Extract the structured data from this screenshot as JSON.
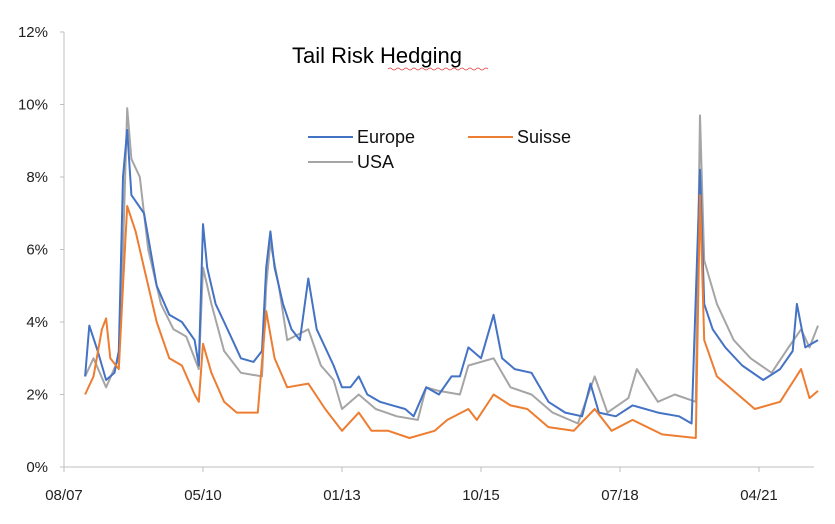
{
  "chart_data": {
    "type": "line",
    "title": "Tail Risk Hedging",
    "xlabel": "",
    "ylabel": "",
    "x_ticks": [
      "08/07",
      "05/10",
      "01/13",
      "10/15",
      "07/18",
      "04/21"
    ],
    "y_ticks": [
      "0%",
      "2%",
      "4%",
      "6%",
      "8%",
      "10%",
      "12%"
    ],
    "ylim": [
      0,
      12
    ],
    "y_unit": "%",
    "grid": false,
    "legend_position": "top-center",
    "series": [
      {
        "name": "Europe",
        "color": "#4472C4",
        "points": [
          [
            "2008-01",
            2.5
          ],
          [
            "2008-02",
            3.9
          ],
          [
            "2008-04",
            3.2
          ],
          [
            "2008-06",
            2.4
          ],
          [
            "2008-08",
            2.6
          ],
          [
            "2008-09",
            3.2
          ],
          [
            "2008-10",
            8.0
          ],
          [
            "2008-11",
            9.3
          ],
          [
            "2008-12",
            7.5
          ],
          [
            "2009-03",
            7.0
          ],
          [
            "2009-06",
            5.0
          ],
          [
            "2009-09",
            4.2
          ],
          [
            "2009-12",
            4.0
          ],
          [
            "2010-03",
            3.5
          ],
          [
            "2010-04",
            2.8
          ],
          [
            "2010-05",
            6.7
          ],
          [
            "2010-06",
            5.5
          ],
          [
            "2010-08",
            4.5
          ],
          [
            "2010-10",
            4.0
          ],
          [
            "2010-12",
            3.5
          ],
          [
            "2011-02",
            3.0
          ],
          [
            "2011-05",
            2.9
          ],
          [
            "2011-07",
            3.2
          ],
          [
            "2011-08",
            5.5
          ],
          [
            "2011-09",
            6.5
          ],
          [
            "2011-10",
            5.5
          ],
          [
            "2011-12",
            4.5
          ],
          [
            "2012-02",
            3.8
          ],
          [
            "2012-04",
            3.5
          ],
          [
            "2012-06",
            5.2
          ],
          [
            "2012-08",
            3.8
          ],
          [
            "2012-10",
            3.3
          ],
          [
            "2012-12",
            2.8
          ],
          [
            "2013-02",
            2.2
          ],
          [
            "2013-04",
            2.2
          ],
          [
            "2013-06",
            2.5
          ],
          [
            "2013-08",
            2.0
          ],
          [
            "2013-11",
            1.8
          ],
          [
            "2014-02",
            1.7
          ],
          [
            "2014-05",
            1.6
          ],
          [
            "2014-07",
            1.4
          ],
          [
            "2014-10",
            2.2
          ],
          [
            "2015-01",
            2.0
          ],
          [
            "2015-04",
            2.5
          ],
          [
            "2015-06",
            2.5
          ],
          [
            "2015-08",
            3.3
          ],
          [
            "2015-11",
            3.0
          ],
          [
            "2016-02",
            4.2
          ],
          [
            "2016-04",
            3.0
          ],
          [
            "2016-07",
            2.7
          ],
          [
            "2016-11",
            2.6
          ],
          [
            "2017-03",
            1.8
          ],
          [
            "2017-07",
            1.5
          ],
          [
            "2017-11",
            1.4
          ],
          [
            "2018-01",
            2.3
          ],
          [
            "2018-03",
            1.5
          ],
          [
            "2018-07",
            1.4
          ],
          [
            "2018-11",
            1.7
          ],
          [
            "2019-05",
            1.5
          ],
          [
            "2019-10",
            1.4
          ],
          [
            "2020-01",
            1.2
          ],
          [
            "2020-03",
            8.2
          ],
          [
            "2020-04",
            4.5
          ],
          [
            "2020-06",
            3.8
          ],
          [
            "2020-09",
            3.3
          ],
          [
            "2021-01",
            2.8
          ],
          [
            "2021-06",
            2.4
          ],
          [
            "2021-10",
            2.7
          ],
          [
            "2022-01",
            3.2
          ],
          [
            "2022-02",
            4.5
          ],
          [
            "2022-04",
            3.3
          ],
          [
            "2022-07",
            3.5
          ]
        ]
      },
      {
        "name": "Suisse",
        "color": "#ED7D31",
        "points": [
          [
            "2008-01",
            2.0
          ],
          [
            "2008-03",
            2.5
          ],
          [
            "2008-05",
            3.8
          ],
          [
            "2008-06",
            4.1
          ],
          [
            "2008-07",
            3.0
          ],
          [
            "2008-09",
            2.7
          ],
          [
            "2008-10",
            5.0
          ],
          [
            "2008-11",
            7.2
          ],
          [
            "2009-01",
            6.5
          ],
          [
            "2009-03",
            5.5
          ],
          [
            "2009-06",
            4.0
          ],
          [
            "2009-09",
            3.0
          ],
          [
            "2009-12",
            2.8
          ],
          [
            "2010-03",
            2.0
          ],
          [
            "2010-04",
            1.8
          ],
          [
            "2010-05",
            3.4
          ],
          [
            "2010-07",
            2.6
          ],
          [
            "2010-10",
            1.8
          ],
          [
            "2011-01",
            1.5
          ],
          [
            "2011-06",
            1.5
          ],
          [
            "2011-08",
            4.3
          ],
          [
            "2011-10",
            3.0
          ],
          [
            "2012-01",
            2.2
          ],
          [
            "2012-06",
            2.3
          ],
          [
            "2012-10",
            1.6
          ],
          [
            "2013-02",
            1.0
          ],
          [
            "2013-06",
            1.5
          ],
          [
            "2013-09",
            1.0
          ],
          [
            "2014-01",
            1.0
          ],
          [
            "2014-06",
            0.8
          ],
          [
            "2014-12",
            1.0
          ],
          [
            "2015-03",
            1.3
          ],
          [
            "2015-08",
            1.6
          ],
          [
            "2015-10",
            1.3
          ],
          [
            "2016-02",
            2.0
          ],
          [
            "2016-06",
            1.7
          ],
          [
            "2016-10",
            1.6
          ],
          [
            "2017-03",
            1.1
          ],
          [
            "2017-09",
            1.0
          ],
          [
            "2018-02",
            1.6
          ],
          [
            "2018-06",
            1.0
          ],
          [
            "2018-11",
            1.3
          ],
          [
            "2019-06",
            0.9
          ],
          [
            "2020-02",
            0.8
          ],
          [
            "2020-03",
            7.5
          ],
          [
            "2020-04",
            3.5
          ],
          [
            "2020-07",
            2.5
          ],
          [
            "2020-12",
            2.0
          ],
          [
            "2021-04",
            1.6
          ],
          [
            "2021-10",
            1.8
          ],
          [
            "2022-03",
            2.7
          ],
          [
            "2022-05",
            1.9
          ],
          [
            "2022-07",
            2.1
          ]
        ]
      },
      {
        "name": "USA",
        "color": "#A5A5A5",
        "points": [
          [
            "2008-01",
            2.5
          ],
          [
            "2008-03",
            3.0
          ],
          [
            "2008-06",
            2.2
          ],
          [
            "2008-09",
            3.0
          ],
          [
            "2008-10",
            6.0
          ],
          [
            "2008-11",
            9.9
          ],
          [
            "2008-12",
            8.5
          ],
          [
            "2009-02",
            8.0
          ],
          [
            "2009-04",
            6.0
          ],
          [
            "2009-07",
            4.5
          ],
          [
            "2009-10",
            3.8
          ],
          [
            "2010-01",
            3.6
          ],
          [
            "2010-04",
            2.7
          ],
          [
            "2010-05",
            5.5
          ],
          [
            "2010-07",
            4.5
          ],
          [
            "2010-10",
            3.2
          ],
          [
            "2011-02",
            2.6
          ],
          [
            "2011-07",
            2.5
          ],
          [
            "2011-08",
            5.0
          ],
          [
            "2011-09",
            6.2
          ],
          [
            "2011-11",
            5.0
          ],
          [
            "2012-01",
            3.5
          ],
          [
            "2012-06",
            3.8
          ],
          [
            "2012-09",
            2.8
          ],
          [
            "2012-12",
            2.4
          ],
          [
            "2013-02",
            1.6
          ],
          [
            "2013-06",
            2.0
          ],
          [
            "2013-10",
            1.6
          ],
          [
            "2014-03",
            1.4
          ],
          [
            "2014-08",
            1.3
          ],
          [
            "2014-10",
            2.2
          ],
          [
            "2015-01",
            2.1
          ],
          [
            "2015-06",
            2.0
          ],
          [
            "2015-08",
            2.8
          ],
          [
            "2016-02",
            3.0
          ],
          [
            "2016-06",
            2.2
          ],
          [
            "2016-11",
            2.0
          ],
          [
            "2017-04",
            1.5
          ],
          [
            "2017-10",
            1.2
          ],
          [
            "2018-02",
            2.5
          ],
          [
            "2018-05",
            1.5
          ],
          [
            "2018-10",
            1.9
          ],
          [
            "2018-12",
            2.7
          ],
          [
            "2019-05",
            1.8
          ],
          [
            "2019-09",
            2.0
          ],
          [
            "2020-02",
            1.8
          ],
          [
            "2020-03",
            9.7
          ],
          [
            "2020-04",
            5.7
          ],
          [
            "2020-07",
            4.5
          ],
          [
            "2020-11",
            3.5
          ],
          [
            "2021-03",
            3.0
          ],
          [
            "2021-08",
            2.6
          ],
          [
            "2021-12",
            3.3
          ],
          [
            "2022-03",
            3.8
          ],
          [
            "2022-05",
            3.3
          ],
          [
            "2022-07",
            3.9
          ]
        ]
      }
    ]
  }
}
